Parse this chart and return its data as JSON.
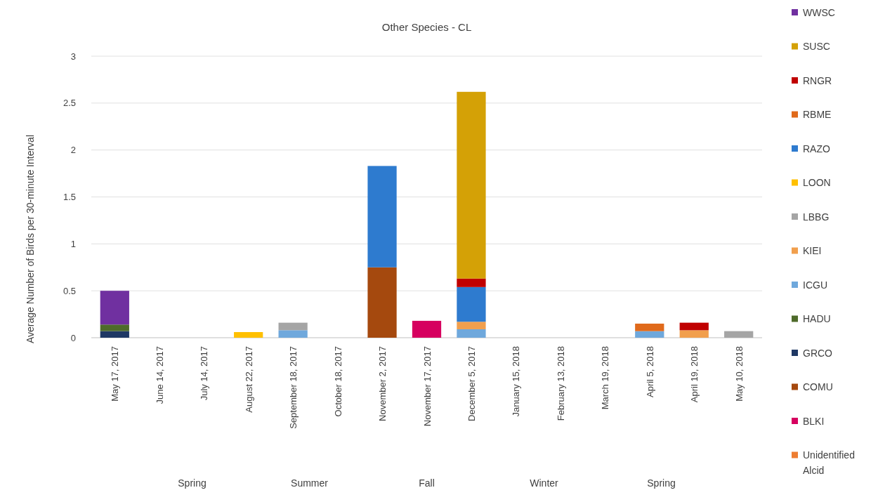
{
  "chart_data": {
    "type": "bar",
    "stacked": true,
    "title": "Other Species - CL",
    "ylabel": "Average Number of Birds per 30-minute Interval",
    "categories": [
      "May 17, 2017",
      "June 14, 2017",
      "July 14, 2017",
      "August 22, 2017",
      "September 18, 2017",
      "October 18, 2017",
      "November 2, 2017",
      "November 17, 2017",
      "December 5, 2017",
      "January 15, 2018",
      "February 13, 2018",
      "March 19, 2018",
      "April 5, 2018",
      "April 19, 2018",
      "May 10, 2018"
    ],
    "ylim": [
      0,
      3
    ],
    "yticks": [
      0,
      0.5,
      1,
      1.5,
      2,
      2.5,
      3
    ],
    "grid": "y",
    "legend": "right",
    "series": [
      {
        "name": "Unidentified Alcid",
        "color": "#ed7d31",
        "values": [
          null,
          null,
          null,
          null,
          null,
          null,
          null,
          null,
          null,
          null,
          null,
          null,
          null,
          null,
          null
        ]
      },
      {
        "name": "BLKI",
        "color": "#d6005f",
        "values": [
          null,
          null,
          null,
          null,
          null,
          null,
          null,
          0.18,
          null,
          null,
          null,
          null,
          null,
          null,
          null
        ]
      },
      {
        "name": "COMU",
        "color": "#a5490e",
        "values": [
          null,
          null,
          null,
          null,
          null,
          null,
          0.75,
          null,
          null,
          null,
          null,
          null,
          null,
          null,
          null
        ]
      },
      {
        "name": "GRCO",
        "color": "#1f3864",
        "values": [
          0.07,
          null,
          null,
          null,
          null,
          null,
          null,
          null,
          null,
          null,
          null,
          null,
          null,
          null,
          null
        ]
      },
      {
        "name": "HADU",
        "color": "#4e6b2a",
        "values": [
          0.07,
          null,
          null,
          null,
          null,
          null,
          null,
          null,
          null,
          null,
          null,
          null,
          null,
          null,
          null
        ]
      },
      {
        "name": "ICGU",
        "color": "#6fa8dc",
        "values": [
          null,
          null,
          null,
          null,
          0.08,
          null,
          null,
          null,
          0.09,
          null,
          null,
          null,
          0.07,
          null,
          null
        ]
      },
      {
        "name": "KIEI",
        "color": "#f19f4d",
        "values": [
          null,
          null,
          null,
          null,
          null,
          null,
          null,
          null,
          0.08,
          null,
          null,
          null,
          null,
          0.08,
          null
        ]
      },
      {
        "name": "LBBG",
        "color": "#a5a5a5",
        "values": [
          null,
          null,
          null,
          null,
          0.08,
          null,
          null,
          null,
          null,
          null,
          null,
          null,
          null,
          null,
          0.07
        ]
      },
      {
        "name": "LOON",
        "color": "#ffc000",
        "values": [
          null,
          null,
          null,
          0.06,
          null,
          null,
          null,
          null,
          null,
          null,
          null,
          null,
          null,
          null,
          null
        ]
      },
      {
        "name": "RAZO",
        "color": "#2e7bcf",
        "values": [
          null,
          null,
          null,
          null,
          null,
          null,
          1.08,
          null,
          0.37,
          null,
          null,
          null,
          null,
          null,
          null
        ]
      },
      {
        "name": "RBME",
        "color": "#e06a1b",
        "values": [
          null,
          null,
          null,
          null,
          null,
          null,
          null,
          null,
          null,
          null,
          null,
          null,
          0.08,
          null,
          null
        ]
      },
      {
        "name": "RNGR",
        "color": "#c00000",
        "values": [
          null,
          null,
          null,
          null,
          null,
          null,
          null,
          null,
          0.09,
          null,
          null,
          null,
          null,
          0.08,
          null
        ]
      },
      {
        "name": "SUSC",
        "color": "#d4a106",
        "values": [
          null,
          null,
          null,
          null,
          null,
          null,
          null,
          null,
          1.99,
          null,
          null,
          null,
          null,
          null,
          null
        ]
      },
      {
        "name": "WWSC",
        "color": "#7030a0",
        "values": [
          0.36,
          null,
          null,
          null,
          null,
          null,
          null,
          null,
          null,
          null,
          null,
          null,
          null,
          null,
          null
        ]
      }
    ],
    "annotations": [
      "Spring",
      "Summer",
      "Fall",
      "Winter",
      "Spring"
    ]
  }
}
